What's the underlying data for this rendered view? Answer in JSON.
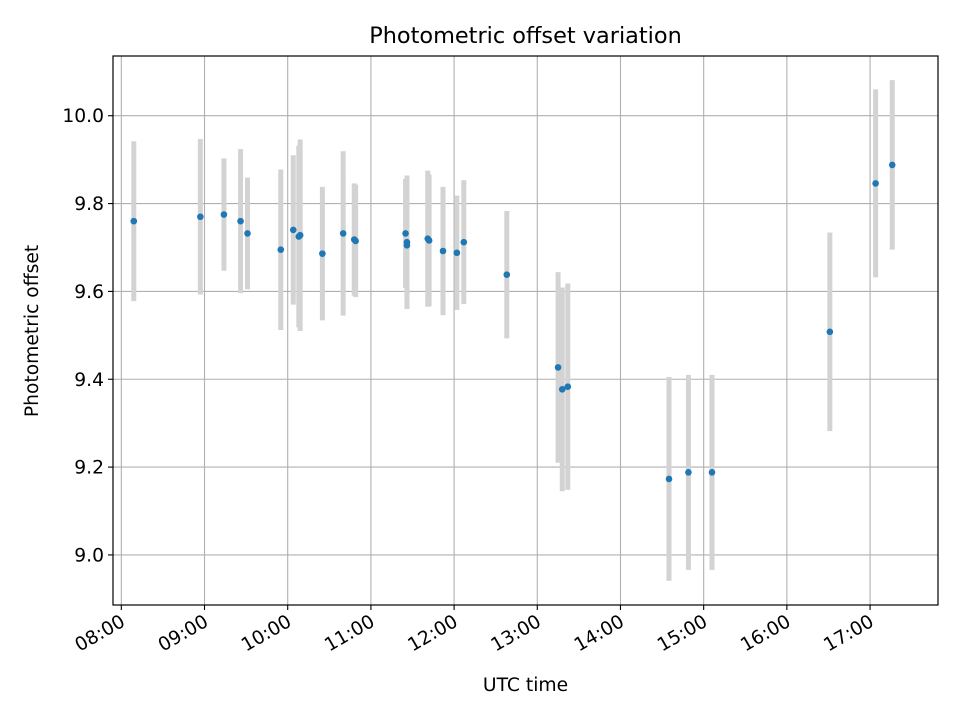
{
  "chart_data": {
    "type": "scatter",
    "title": "Photometric offset variation",
    "xlabel": "UTC time",
    "ylabel": "Photometric offset",
    "x_ticks": [
      "08:00",
      "09:00",
      "10:00",
      "11:00",
      "12:00",
      "13:00",
      "14:00",
      "15:00",
      "16:00",
      "17:00"
    ],
    "y_ticks": [
      "9.0",
      "9.2",
      "9.4",
      "9.6",
      "9.8",
      "10.0"
    ],
    "xlim": [
      "07:54",
      "17:49"
    ],
    "ylim": [
      8.886,
      10.136
    ],
    "grid": true,
    "point_color": "#1f77b4",
    "errorbar_color": "#d3d3d3",
    "points": [
      {
        "x": "08:09",
        "y": 9.76,
        "err": 0.182
      },
      {
        "x": "08:57",
        "y": 9.77,
        "err": 0.177
      },
      {
        "x": "09:14",
        "y": 9.775,
        "err": 0.128
      },
      {
        "x": "09:26",
        "y": 9.76,
        "err": 0.164
      },
      {
        "x": "09:31",
        "y": 9.732,
        "err": 0.127
      },
      {
        "x": "09:55",
        "y": 9.695,
        "err": 0.183
      },
      {
        "x": "10:04",
        "y": 9.74,
        "err": 0.17
      },
      {
        "x": "10:08",
        "y": 9.725,
        "err": 0.207
      },
      {
        "x": "10:09",
        "y": 9.728,
        "err": 0.218
      },
      {
        "x": "10:25",
        "y": 9.686,
        "err": 0.152
      },
      {
        "x": "10:40",
        "y": 9.732,
        "err": 0.187
      },
      {
        "x": "10:48",
        "y": 9.718,
        "err": 0.128
      },
      {
        "x": "10:49",
        "y": 9.715,
        "err": 0.128
      },
      {
        "x": "11:25",
        "y": 9.732,
        "err": 0.124
      },
      {
        "x": "11:26",
        "y": 9.705,
        "err": 0.144
      },
      {
        "x": "11:26",
        "y": 9.712,
        "err": 0.152
      },
      {
        "x": "11:41",
        "y": 9.72,
        "err": 0.155
      },
      {
        "x": "11:42",
        "y": 9.716,
        "err": 0.15
      },
      {
        "x": "11:52",
        "y": 9.692,
        "err": 0.146
      },
      {
        "x": "12:02",
        "y": 9.688,
        "err": 0.13
      },
      {
        "x": "12:07",
        "y": 9.712,
        "err": 0.141
      },
      {
        "x": "12:38",
        "y": 9.638,
        "err": 0.145
      },
      {
        "x": "13:15",
        "y": 9.427,
        "err": 0.217
      },
      {
        "x": "13:18",
        "y": 9.377,
        "err": 0.232
      },
      {
        "x": "13:22",
        "y": 9.383,
        "err": 0.235
      },
      {
        "x": "14:35",
        "y": 9.173,
        "err": 0.232
      },
      {
        "x": "14:49",
        "y": 9.188,
        "err": 0.222
      },
      {
        "x": "15:06",
        "y": 9.188,
        "err": 0.222
      },
      {
        "x": "16:31",
        "y": 9.508,
        "err": 0.226
      },
      {
        "x": "17:04",
        "y": 9.846,
        "err": 0.214
      },
      {
        "x": "17:16",
        "y": 9.888,
        "err": 0.193
      }
    ]
  }
}
